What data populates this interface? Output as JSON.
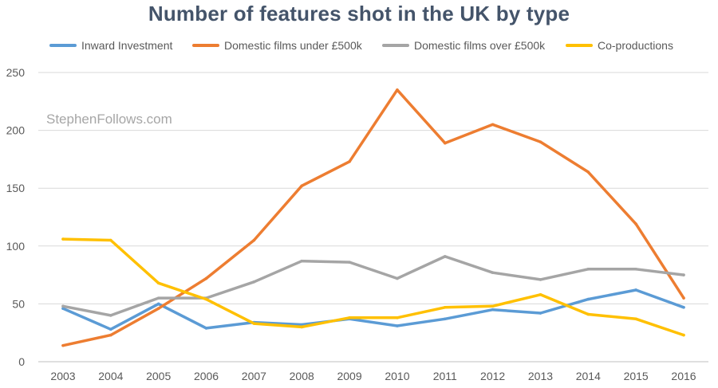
{
  "watermark": "StephenFollows.com",
  "chart_data": {
    "type": "line",
    "title": "Number of features shot in the UK by type",
    "xlabel": "",
    "ylabel": "",
    "ylim": [
      0,
      250
    ],
    "yticks": [
      "0",
      "50",
      "100",
      "150",
      "200",
      "250"
    ],
    "grid": true,
    "legend_position": "top",
    "categories": [
      "2003",
      "2004",
      "2005",
      "2006",
      "2007",
      "2008",
      "2009",
      "2010",
      "2011",
      "2012",
      "2013",
      "2014",
      "2015",
      "2016"
    ],
    "series": [
      {
        "name": "Inward Investment",
        "color": "#5b9bd5",
        "values": [
          46,
          28,
          50,
          29,
          34,
          32,
          37,
          31,
          37,
          45,
          42,
          54,
          62,
          47
        ]
      },
      {
        "name": "Domestic films under £500k",
        "color": "#ed7d31",
        "values": [
          14,
          23,
          46,
          72,
          105,
          152,
          173,
          235,
          189,
          205,
          190,
          164,
          119,
          55
        ]
      },
      {
        "name": "Domestic films over £500k",
        "color": "#a5a5a5",
        "values": [
          48,
          40,
          55,
          55,
          69,
          87,
          86,
          72,
          91,
          77,
          71,
          80,
          80,
          75
        ]
      },
      {
        "name": "Co-productions",
        "color": "#ffc000",
        "values": [
          106,
          105,
          68,
          54,
          33,
          30,
          38,
          38,
          47,
          48,
          58,
          41,
          37,
          23
        ]
      }
    ]
  }
}
